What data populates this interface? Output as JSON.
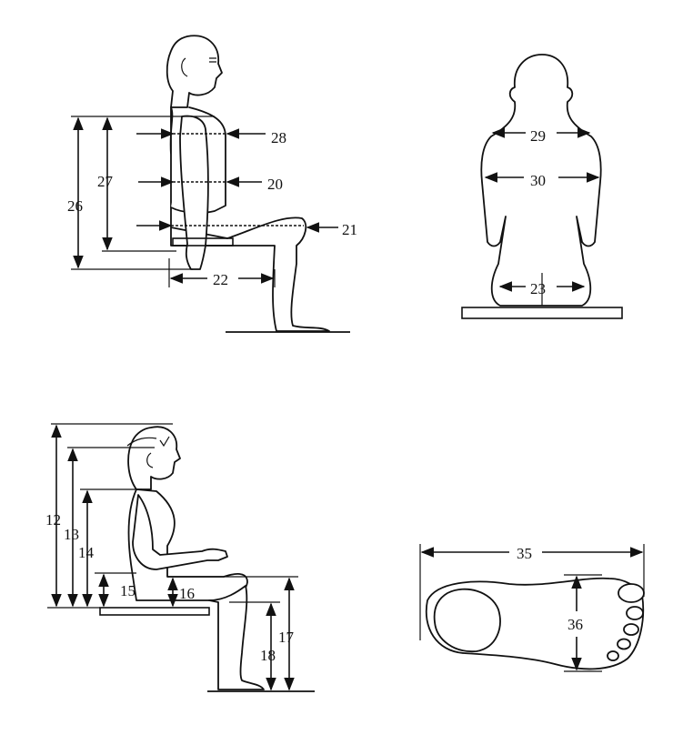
{
  "diagram": {
    "side_view": {
      "labels": {
        "m28": "28",
        "m27": "27",
        "m26": "26",
        "m20": "20",
        "m21": "21",
        "m22": "22"
      }
    },
    "back_view": {
      "labels": {
        "m29": "29",
        "m30": "30",
        "m23": "23"
      }
    },
    "seated_heights": {
      "labels": {
        "m12": "12",
        "m13": "13",
        "m14": "14",
        "m15": "15",
        "m16": "16",
        "m17": "17",
        "m18": "18"
      }
    },
    "foot": {
      "labels": {
        "m35": "35",
        "m36": "36"
      }
    }
  }
}
